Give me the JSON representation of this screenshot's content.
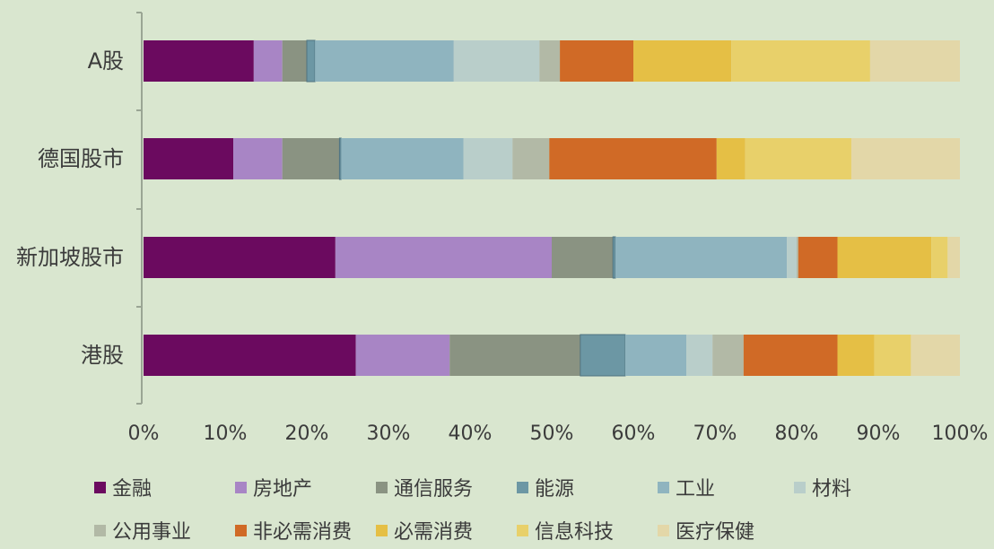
{
  "chart_data": {
    "type": "bar",
    "orientation": "horizontal",
    "stacked": true,
    "categories": [
      "A股",
      "德国股市",
      "新加坡股市",
      "港股"
    ],
    "xlim": [
      0,
      100
    ],
    "x_ticks": [
      "0%",
      "10%",
      "20%",
      "30%",
      "40%",
      "50%",
      "60%",
      "70%",
      "80%",
      "90%",
      "100%"
    ],
    "grid": false,
    "legend_position": "bottom",
    "series": [
      {
        "name": "金融",
        "color": "#6b0a5f",
        "values": [
          13.5,
          11,
          23.5,
          26
        ]
      },
      {
        "name": "房地产",
        "color": "#a885c5",
        "values": [
          3.5,
          6,
          26.5,
          11.5
        ]
      },
      {
        "name": "通信服务",
        "color": "#8a9382",
        "values": [
          3,
          7,
          7.5,
          16
        ]
      },
      {
        "name": "能源",
        "color": "#6c97a4",
        "values": [
          1,
          0.2,
          0.3,
          5.5
        ]
      },
      {
        "name": "工业",
        "color": "#8fb4bf",
        "values": [
          17,
          15,
          21,
          7.5
        ]
      },
      {
        "name": "材料",
        "color": "#b9ceca",
        "values": [
          10.5,
          6,
          1.2,
          3.2
        ]
      },
      {
        "name": "公用事业",
        "color": "#b2b9a6",
        "values": [
          2.5,
          4.5,
          0.2,
          3.8
        ]
      },
      {
        "name": "非必需消费",
        "color": "#d06a26",
        "values": [
          9,
          20.5,
          4.8,
          11.5
        ]
      },
      {
        "name": "必需消费",
        "color": "#e5bf45",
        "values": [
          12,
          3.5,
          11.5,
          4.5
        ]
      },
      {
        "name": "信息科技",
        "color": "#e8d06a",
        "values": [
          17,
          13,
          2,
          4.5
        ]
      },
      {
        "name": "医疗保健",
        "color": "#e3d7a8",
        "values": [
          11,
          13.3,
          1.5,
          6
        ]
      }
    ]
  }
}
